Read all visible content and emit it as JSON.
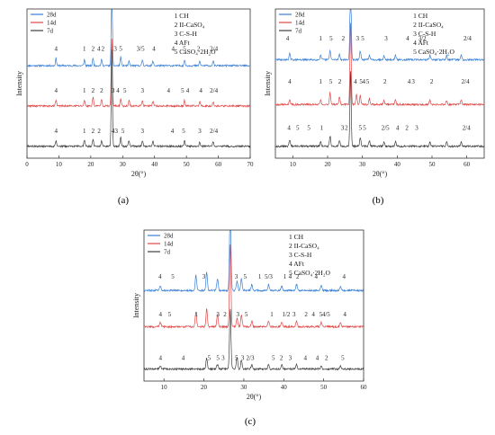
{
  "figure": {
    "sublabels": [
      "(a)",
      "(b)",
      "(c)"
    ]
  },
  "chart_data": [
    {
      "type": "line",
      "panel": "(a)",
      "xlabel": "2θ(°)",
      "ylabel": "Intensity",
      "xlim": [
        0,
        70
      ],
      "xticks": [
        0,
        10,
        20,
        30,
        40,
        50,
        60,
        70
      ],
      "legend": [
        "28d",
        "14d",
        "7d"
      ],
      "series_colors": [
        "#3a7fd5",
        "#e04848",
        "#404040"
      ],
      "peak_legend": [
        "1 CH",
        "2 II-CaSO₄",
        "3 C-S-H",
        "4 AFt",
        "5 CaSO₄·2H₂O"
      ],
      "series": [
        {
          "name": "28d",
          "baseline": 0.62,
          "peaks": [
            [
              9.1,
              0.05
            ],
            [
              18.0,
              0.04
            ],
            [
              20.7,
              0.05
            ],
            [
              23.4,
              0.04
            ],
            [
              26.6,
              0.55
            ],
            [
              29.4,
              0.06
            ],
            [
              32.0,
              0.03
            ],
            [
              36.2,
              0.04
            ],
            [
              39.5,
              0.03
            ],
            [
              49.4,
              0.04
            ],
            [
              54.2,
              0.03
            ],
            [
              58.4,
              0.03
            ]
          ]
        },
        {
          "name": "14d",
          "baseline": 0.35,
          "peaks": [
            [
              9.1,
              0.04
            ],
            [
              18.0,
              0.04
            ],
            [
              20.7,
              0.06
            ],
            [
              23.4,
              0.05
            ],
            [
              26.6,
              0.45
            ],
            [
              29.4,
              0.05
            ],
            [
              32.0,
              0.04
            ],
            [
              36.2,
              0.04
            ],
            [
              39.5,
              0.03
            ],
            [
              49.4,
              0.04
            ],
            [
              54.2,
              0.03
            ],
            [
              58.4,
              0.03
            ]
          ]
        },
        {
          "name": "7d",
          "baseline": 0.08,
          "peaks": [
            [
              9.1,
              0.04
            ],
            [
              18.0,
              0.04
            ],
            [
              20.7,
              0.05
            ],
            [
              23.4,
              0.04
            ],
            [
              26.6,
              0.65
            ],
            [
              29.4,
              0.06
            ],
            [
              32.0,
              0.04
            ],
            [
              36.2,
              0.04
            ],
            [
              39.5,
              0.03
            ],
            [
              49.4,
              0.04
            ],
            [
              54.2,
              0.03
            ],
            [
              58.4,
              0.03
            ]
          ]
        }
      ],
      "peak_labels": [
        {
          "y": 0.72,
          "items": [
            [
              9.1,
              "4"
            ],
            [
              18.0,
              "1"
            ],
            [
              20.7,
              "2"
            ],
            [
              22.5,
              "4"
            ],
            [
              23.8,
              "2"
            ],
            [
              27.7,
              "3"
            ],
            [
              29.4,
              "5"
            ],
            [
              35.6,
              "3/5"
            ],
            [
              39.8,
              "4"
            ],
            [
              45.8,
              "4"
            ],
            [
              49.4,
              "5"
            ],
            [
              53.8,
              "2"
            ],
            [
              58.6,
              "2/4"
            ]
          ]
        },
        {
          "y": 0.44,
          "items": [
            [
              9.1,
              "4"
            ],
            [
              18.0,
              "1"
            ],
            [
              20.7,
              "2"
            ],
            [
              23.4,
              "2"
            ],
            [
              27.0,
              "3"
            ],
            [
              28.5,
              "4"
            ],
            [
              30.7,
              "5"
            ],
            [
              36.2,
              "3"
            ],
            [
              44.4,
              "4"
            ],
            [
              48.8,
              "5"
            ],
            [
              50.4,
              "4"
            ],
            [
              54.5,
              "4"
            ],
            [
              58.6,
              "2/4"
            ]
          ]
        },
        {
          "y": 0.17,
          "items": [
            [
              9.1,
              "4"
            ],
            [
              18.0,
              "1"
            ],
            [
              20.7,
              "2"
            ],
            [
              22.6,
              "2"
            ],
            [
              27.0,
              "4"
            ],
            [
              28.0,
              "3"
            ],
            [
              30.1,
              "5"
            ],
            [
              36.2,
              "3"
            ],
            [
              45.6,
              "4"
            ],
            [
              49.1,
              "5"
            ],
            [
              54.2,
              "3"
            ],
            [
              58.6,
              "2/4"
            ]
          ]
        }
      ]
    },
    {
      "type": "line",
      "panel": "(b)",
      "xlabel": "2θ(°)",
      "ylabel": "Intensity",
      "xlim": [
        5,
        65
      ],
      "xticks": [
        10,
        20,
        30,
        40,
        50,
        60
      ],
      "legend": [
        "28d",
        "14d",
        "7d"
      ],
      "series_colors": [
        "#3a7fd5",
        "#e04848",
        "#404040"
      ],
      "peak_legend": [
        "1 CH",
        "2 II-CaSO₄",
        "3 C-S-H",
        "4 AFt",
        "5 CaSO₄·2H₂O"
      ],
      "series": [
        {
          "name": "28d",
          "baseline": 0.66,
          "peaks": [
            [
              9.1,
              0.04
            ],
            [
              18.0,
              0.03
            ],
            [
              20.7,
              0.06
            ],
            [
              23.4,
              0.04
            ],
            [
              26.6,
              0.55
            ],
            [
              29.4,
              0.06
            ],
            [
              32.0,
              0.03
            ],
            [
              36.2,
              0.03
            ],
            [
              39.5,
              0.03
            ],
            [
              49.4,
              0.03
            ],
            [
              54.2,
              0.03
            ],
            [
              58.4,
              0.03
            ]
          ]
        },
        {
          "name": "14d",
          "baseline": 0.36,
          "peaks": [
            [
              9.1,
              0.03
            ],
            [
              18.0,
              0.03
            ],
            [
              20.7,
              0.08
            ],
            [
              23.4,
              0.05
            ],
            [
              26.6,
              0.55
            ],
            [
              28.3,
              0.07
            ],
            [
              29.4,
              0.06
            ],
            [
              32.0,
              0.04
            ],
            [
              36.2,
              0.03
            ],
            [
              39.5,
              0.03
            ],
            [
              49.4,
              0.03
            ],
            [
              54.2,
              0.03
            ],
            [
              58.4,
              0.03
            ]
          ]
        },
        {
          "name": "7d",
          "baseline": 0.08,
          "peaks": [
            [
              9.1,
              0.04
            ],
            [
              18.0,
              0.03
            ],
            [
              20.7,
              0.07
            ],
            [
              23.4,
              0.04
            ],
            [
              26.6,
              0.5
            ],
            [
              29.4,
              0.06
            ],
            [
              32.0,
              0.04
            ],
            [
              36.2,
              0.03
            ],
            [
              39.5,
              0.03
            ],
            [
              49.4,
              0.03
            ],
            [
              54.2,
              0.03
            ],
            [
              58.4,
              0.03
            ]
          ]
        }
      ],
      "peak_labels": [
        {
          "y": 0.79,
          "items": [
            [
              8.5,
              "4"
            ],
            [
              18.0,
              "1"
            ],
            [
              21.0,
              "5"
            ],
            [
              24.5,
              "2"
            ],
            [
              28.6,
              "3"
            ],
            [
              30.1,
              "5"
            ],
            [
              36.8,
              "3"
            ],
            [
              43.0,
              "4"
            ],
            [
              47.2,
              "3/2"
            ],
            [
              60.2,
              "2/4"
            ]
          ]
        },
        {
          "y": 0.5,
          "items": [
            [
              9.1,
              "4"
            ],
            [
              18.0,
              "1"
            ],
            [
              20.9,
              "5"
            ],
            [
              23.5,
              "2"
            ],
            [
              28.0,
              "4"
            ],
            [
              29.6,
              "5"
            ],
            [
              30.4,
              "4"
            ],
            [
              31.5,
              "5"
            ],
            [
              36.5,
              "2"
            ],
            [
              43.4,
              "4"
            ],
            [
              44.6,
              "3"
            ],
            [
              49.9,
              "2"
            ],
            [
              59.6,
              "2/4"
            ]
          ]
        },
        {
          "y": 0.19,
          "items": [
            [
              8.9,
              "4"
            ],
            [
              11.4,
              "5"
            ],
            [
              14.6,
              "5"
            ],
            [
              18.3,
              "1"
            ],
            [
              24.3,
              "3"
            ],
            [
              25.4,
              "2"
            ],
            [
              29.4,
              "5"
            ],
            [
              30.6,
              "5"
            ],
            [
              36.6,
              "2/5"
            ],
            [
              40.1,
              "4"
            ],
            [
              42.8,
              "2"
            ],
            [
              45.6,
              "3"
            ],
            [
              59.9,
              "2/4"
            ]
          ]
        }
      ]
    },
    {
      "type": "line",
      "panel": "(c)",
      "xlabel": "2θ(°)",
      "ylabel": "Intensity",
      "xlim": [
        5,
        60
      ],
      "xticks": [
        10,
        20,
        30,
        40,
        50,
        60
      ],
      "legend": [
        "28d",
        "14d",
        "7d"
      ],
      "series_colors": [
        "#3a7fd5",
        "#e04848",
        "#404040"
      ],
      "peak_legend": [
        "1 CH",
        "2 II-CaSO₄",
        "3 C-S-H",
        "4 AFt",
        "5 CaSO₄·2H₂O"
      ],
      "series": [
        {
          "name": "28d",
          "baseline": 0.6,
          "peaks": [
            [
              9.1,
              0.03
            ],
            [
              18.0,
              0.1
            ],
            [
              20.7,
              0.12
            ],
            [
              23.4,
              0.08
            ],
            [
              26.6,
              0.55
            ],
            [
              28.3,
              0.06
            ],
            [
              29.4,
              0.08
            ],
            [
              32.0,
              0.04
            ],
            [
              36.2,
              0.04
            ],
            [
              39.5,
              0.03
            ],
            [
              43.2,
              0.04
            ],
            [
              49.4,
              0.03
            ],
            [
              54.2,
              0.03
            ]
          ]
        },
        {
          "name": "14d",
          "baseline": 0.36,
          "peaks": [
            [
              9.1,
              0.03
            ],
            [
              18.0,
              0.1
            ],
            [
              20.7,
              0.12
            ],
            [
              23.4,
              0.08
            ],
            [
              26.6,
              0.55
            ],
            [
              28.3,
              0.06
            ],
            [
              29.4,
              0.08
            ],
            [
              32.0,
              0.04
            ],
            [
              36.2,
              0.04
            ],
            [
              39.5,
              0.03
            ],
            [
              43.2,
              0.04
            ],
            [
              49.4,
              0.03
            ],
            [
              54.2,
              0.03
            ]
          ]
        },
        {
          "name": "7d",
          "baseline": 0.08,
          "peaks": [
            [
              9.1,
              0.02
            ],
            [
              20.7,
              0.07
            ],
            [
              23.4,
              0.03
            ],
            [
              26.6,
              0.4
            ],
            [
              28.3,
              0.08
            ],
            [
              29.4,
              0.06
            ],
            [
              32.0,
              0.03
            ],
            [
              36.2,
              0.03
            ],
            [
              39.5,
              0.03
            ],
            [
              43.2,
              0.03
            ],
            [
              49.4,
              0.02
            ],
            [
              54.2,
              0.02
            ]
          ]
        }
      ],
      "peak_labels": [
        {
          "y": 0.68,
          "items": [
            [
              9.0,
              "4"
            ],
            [
              12.2,
              "5"
            ],
            [
              20.0,
              "3"
            ],
            [
              28.1,
              "3"
            ],
            [
              30.3,
              "5"
            ],
            [
              34.0,
              "1"
            ],
            [
              36.2,
              "5/3"
            ],
            [
              40.3,
              "1"
            ],
            [
              41.6,
              "4"
            ],
            [
              43.5,
              "2"
            ],
            [
              48.1,
              "4"
            ],
            [
              55.1,
              "4"
            ]
          ]
        },
        {
          "y": 0.43,
          "items": [
            [
              9.1,
              "4"
            ],
            [
              11.4,
              "5"
            ],
            [
              18.1,
              "1"
            ],
            [
              23.5,
              "3"
            ],
            [
              25.3,
              "2"
            ],
            [
              28.5,
              "3"
            ],
            [
              30.6,
              "5"
            ],
            [
              37.0,
              "1"
            ],
            [
              40.6,
              "1/2"
            ],
            [
              42.6,
              "3"
            ],
            [
              45.6,
              "2"
            ],
            [
              47.4,
              "4"
            ],
            [
              49.3,
              "5"
            ],
            [
              50.6,
              "4/5"
            ],
            [
              55.3,
              "4"
            ]
          ]
        },
        {
          "y": 0.14,
          "items": [
            [
              9.1,
              "4"
            ],
            [
              14.8,
              "4"
            ],
            [
              21.3,
              "5"
            ],
            [
              23.5,
              "5"
            ],
            [
              24.8,
              "3"
            ],
            [
              28.2,
              "5"
            ],
            [
              29.7,
              "3"
            ],
            [
              31.6,
              "2/3"
            ],
            [
              37.4,
              "5"
            ],
            [
              39.4,
              "2"
            ],
            [
              41.6,
              "3"
            ],
            [
              45.4,
              "4"
            ],
            [
              48.4,
              "4"
            ],
            [
              50.7,
              "2"
            ],
            [
              54.8,
              "5"
            ]
          ]
        }
      ]
    }
  ]
}
